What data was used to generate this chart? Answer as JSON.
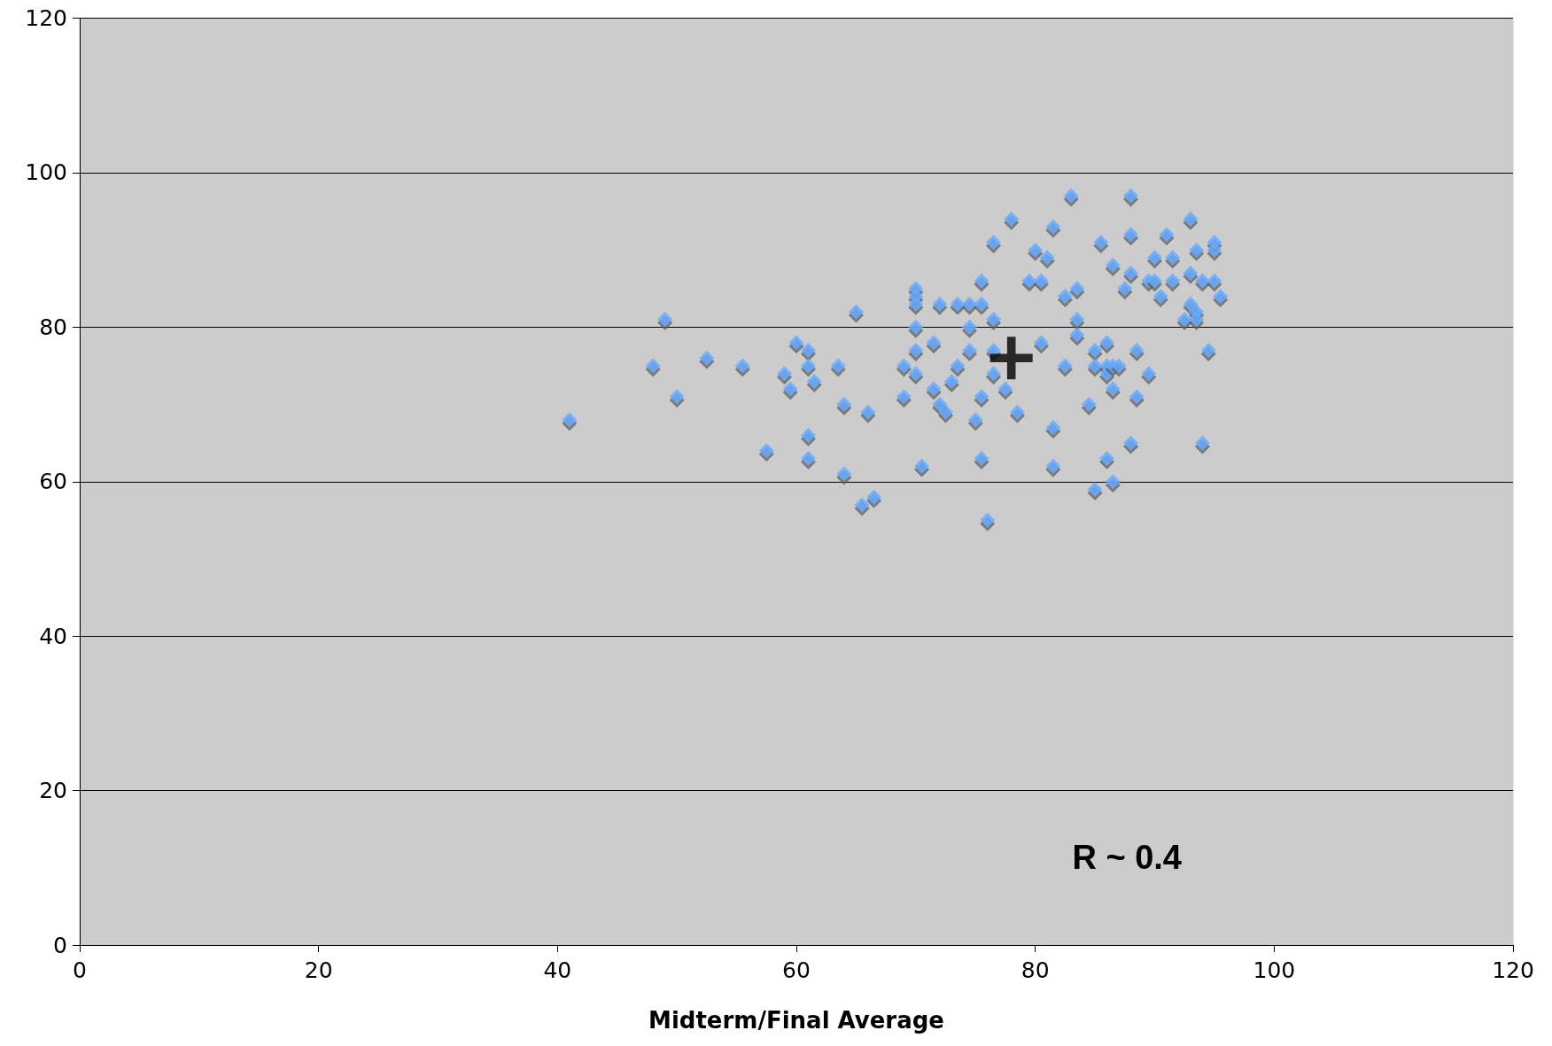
{
  "chart_data": {
    "type": "scatter",
    "xlabel": "Midterm/Final Average",
    "xlim": [
      0,
      120
    ],
    "xticks": [
      0,
      20,
      40,
      60,
      80,
      100,
      120
    ],
    "ylim": [
      0,
      120
    ],
    "yticks": [
      0,
      20,
      40,
      60,
      80,
      100,
      120
    ],
    "grid": "y",
    "annotations": [
      "R ~ 0.4"
    ],
    "series": [
      {
        "color": "#66aaff",
        "marker": "diamond",
        "x": [
          41,
          48,
          49,
          50,
          52.5,
          55.5,
          57.5,
          59,
          59.5,
          60,
          61,
          61,
          61,
          61,
          61.5,
          63.5,
          64,
          64,
          65,
          65.5,
          66,
          66.5,
          69,
          69,
          70,
          70,
          70,
          70,
          70,
          70,
          70.5,
          71.5,
          71.5,
          72,
          72,
          72.5,
          73,
          73.5,
          73.5,
          74.5,
          74.5,
          74.5,
          75,
          75.5,
          75.5,
          75.5,
          75.5,
          76,
          76.5,
          76.5,
          76.5,
          76.5,
          77.5,
          78,
          78.5,
          79.5,
          80,
          80.5,
          80.5,
          81,
          81.5,
          81.5,
          81.5,
          82.5,
          82.5,
          83,
          83.5,
          83.5,
          83.5,
          84.5,
          85,
          85,
          85,
          85.5,
          86,
          86,
          86,
          86,
          86.5,
          86.5,
          86.5,
          86.5,
          87,
          87.5,
          88,
          88,
          88,
          88,
          88.5,
          88.5,
          89.5,
          89.5,
          90,
          90,
          90.5,
          91,
          91.5,
          91.5,
          92.5,
          93,
          93,
          93,
          93.5,
          93.5,
          93.5,
          94,
          94,
          94.5,
          95,
          95,
          95,
          95.5
        ],
        "values": [
          68,
          75,
          81,
          71,
          76,
          75,
          64,
          74,
          72,
          78,
          77,
          75,
          66,
          63,
          73,
          75,
          70,
          61,
          82,
          57,
          69,
          58,
          75,
          71,
          85,
          84,
          83,
          80,
          77,
          74,
          62,
          78,
          72,
          83,
          70,
          69,
          73,
          83,
          75,
          83,
          80,
          77,
          68,
          86,
          83,
          71,
          63,
          55,
          91,
          81,
          77,
          74,
          72,
          94,
          69,
          86,
          90,
          86,
          78,
          89,
          93,
          67,
          62,
          84,
          75,
          97,
          85,
          81,
          79,
          70,
          77,
          75,
          59,
          91,
          78,
          75,
          74,
          63,
          88,
          75,
          72,
          60,
          75,
          85,
          97,
          92,
          87,
          65,
          77,
          71,
          86,
          74,
          89,
          86,
          84,
          92,
          89,
          86,
          81,
          94,
          87,
          83,
          90,
          82,
          81,
          86,
          65,
          77,
          91,
          90,
          86,
          84
        ]
      },
      {
        "color": "#000000",
        "marker": "cross",
        "x": [
          78
        ],
        "values": [
          76
        ]
      }
    ]
  }
}
